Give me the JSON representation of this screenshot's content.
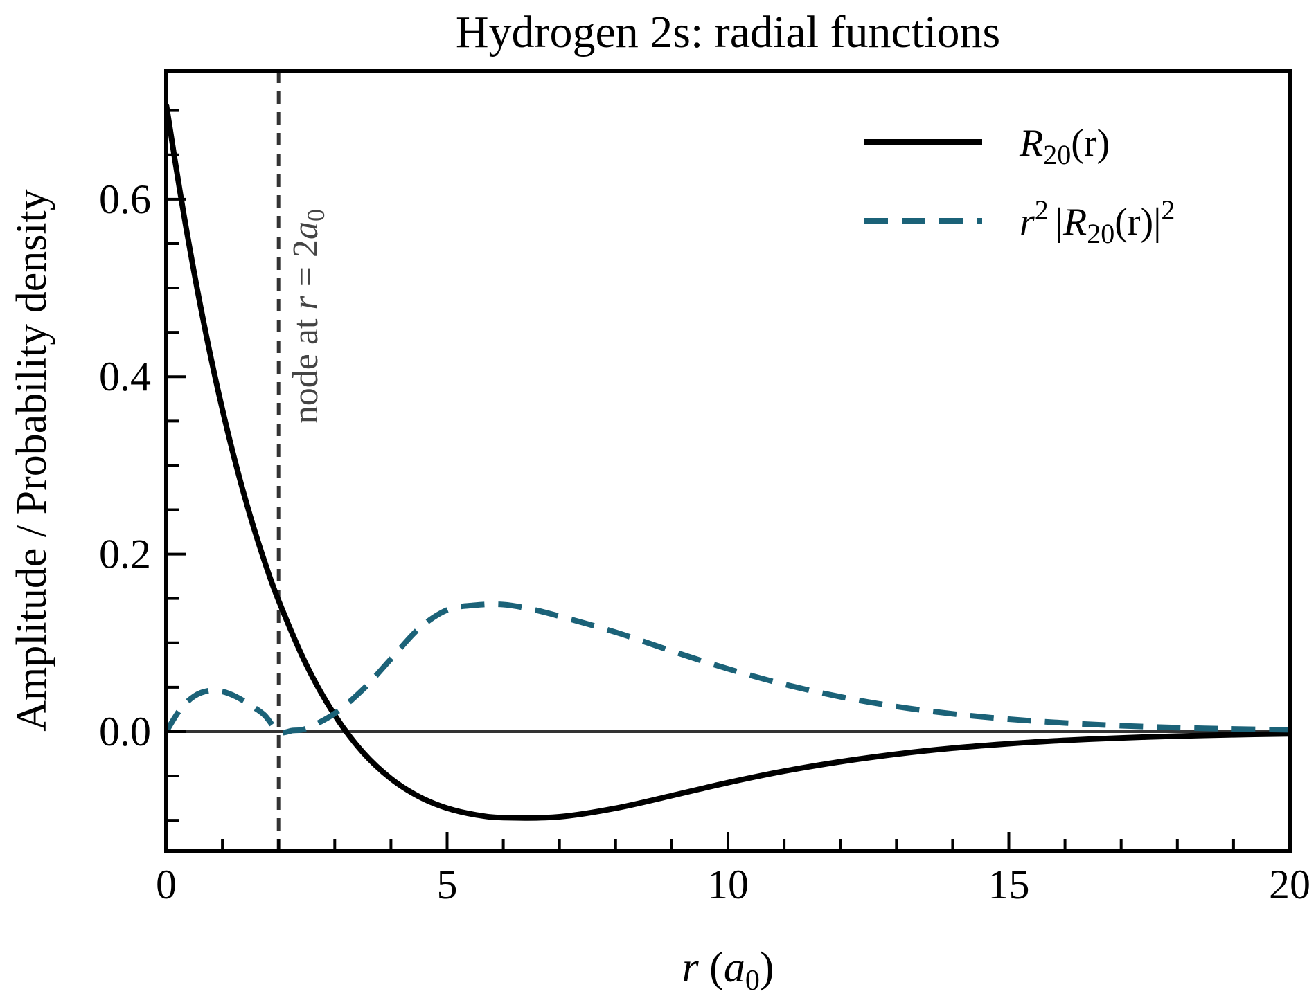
{
  "chart_data": {
    "type": "line",
    "title": "Hydrogen 2s: radial functions",
    "xlabel": {
      "var": "r",
      "open": " (",
      "sym": "a",
      "sub": "0",
      "close": ")"
    },
    "ylabel": "Amplitude / Probability density",
    "xlim": [
      0,
      20
    ],
    "ylim": [
      -0.135,
      0.745
    ],
    "x_ticks": [
      0,
      5,
      10,
      15,
      20
    ],
    "x_tick_labels": [
      "0",
      "5",
      "10",
      "15",
      "20"
    ],
    "x_minor_step": 1,
    "y_ticks": [
      0.0,
      0.2,
      0.4,
      0.6
    ],
    "y_tick_labels": [
      "0.0",
      "0.2",
      "0.4",
      "0.6"
    ],
    "y_minor_step": 0.05,
    "grid": false,
    "legend_position": "top-right",
    "series": [
      {
        "name": {
          "base": "R",
          "sub": "20",
          "tail": "(r)"
        },
        "style": "solid",
        "color": "#000000",
        "x": [
          0,
          0.25,
          0.5,
          0.75,
          1,
          1.25,
          1.5,
          1.75,
          2,
          2.5,
          3,
          3.5,
          4,
          4.5,
          5,
          5.5,
          6,
          7,
          8,
          9,
          10,
          11,
          12,
          13,
          14,
          15,
          16,
          17,
          18,
          19,
          20
        ],
        "y": [
          0.7071,
          0.6066,
          0.5162,
          0.4353,
          0.3631,
          0.2988,
          0.242,
          0.1918,
          0.1477,
          0.0745,
          0.0185,
          -0.0233,
          -0.053,
          -0.0733,
          -0.0863,
          -0.0937,
          -0.097,
          -0.096,
          -0.0864,
          -0.0722,
          -0.0575,
          -0.0446,
          -0.034,
          -0.0254,
          -0.0187,
          -0.0137,
          -0.0099,
          -0.0071,
          -0.0051,
          -0.0036,
          -0.0025
        ]
      },
      {
        "name": {
          "pre": "r",
          "pre_sup": "2",
          "bar": "|",
          "base": "R",
          "sub": "20",
          "tail": "(r)",
          "close": "|",
          "sup": "2"
        },
        "style": "dashed",
        "color": "#1b6278",
        "x": [
          0,
          0.25,
          0.5,
          0.75,
          1,
          1.25,
          1.5,
          1.75,
          2,
          2.25,
          2.5,
          3,
          3.5,
          4,
          4.5,
          5,
          5.5,
          6,
          6.5,
          7,
          8,
          9,
          10,
          11,
          12,
          13,
          14,
          15,
          16,
          17,
          18,
          19,
          20
        ],
        "y": [
          0.0,
          0.025,
          0.04,
          0.046,
          0.0451,
          0.0391,
          0.0297,
          0.0185,
          0.0,
          0.0012,
          0.0036,
          0.0205,
          0.0473,
          0.0818,
          0.1161,
          0.137,
          0.1424,
          0.1431,
          0.138,
          0.13,
          0.112,
          0.0908,
          0.0707,
          0.0533,
          0.0392,
          0.0282,
          0.02,
          0.014,
          0.0097,
          0.0066,
          0.0045,
          0.003,
          0.002
        ]
      }
    ],
    "zero_line": {
      "y": 0,
      "color": "#333333"
    },
    "annotations": [
      {
        "kind": "vline",
        "x": 2,
        "color": "#333333",
        "style": "dashed",
        "label": {
          "text": "node at ",
          "var": "r",
          "eq": " = 2",
          "sym": "a",
          "sub": "0"
        }
      }
    ]
  }
}
